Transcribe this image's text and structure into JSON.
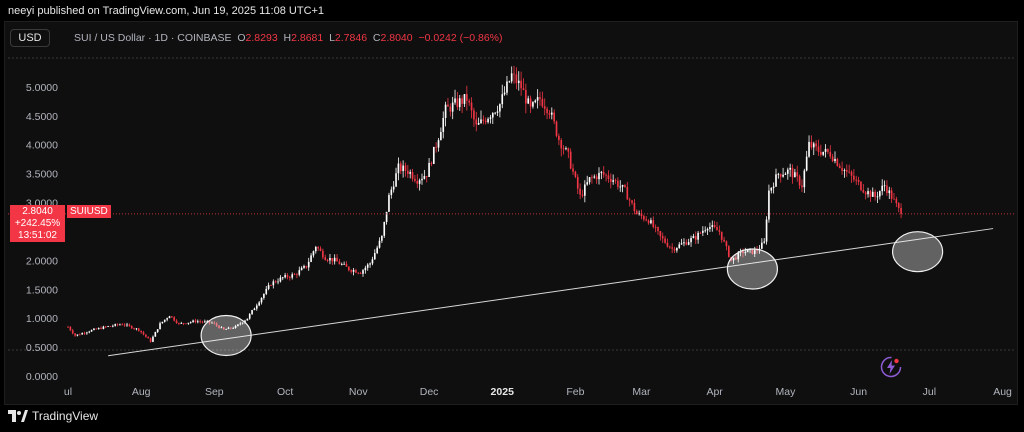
{
  "publisher": "neeyi published on TradingView.com, Jun 19, 2025 11:08 UTC+1",
  "currency": "USD",
  "legend": {
    "symbol": "SUI / US Dollar · 1D · COINBASE",
    "o_label": "O",
    "o": "2.8293",
    "h_label": "H",
    "h": "2.8681",
    "l_label": "L",
    "l": "2.7846",
    "c_label": "C",
    "c": "2.8040",
    "change": "−0.0242 (−0.86%)"
  },
  "price_tag": {
    "price": "2.8040",
    "pct": "+242.45%",
    "countdown": "13:51:02"
  },
  "symbol_tag": "SUIUSD",
  "footer": "TradingView",
  "colors": {
    "up": "#ffffff",
    "down": "#f23645",
    "background": "#0f0f0f",
    "trendline": "#d8d8d8"
  },
  "icons": {
    "bolt": "lightning-bolt-icon",
    "logo": "tradingview-logo-icon"
  },
  "chart_data": {
    "type": "candlestick",
    "title": "",
    "xlabel": "",
    "ylabel": "",
    "ylim": [
      0,
      5.5
    ],
    "xlim": [
      "2024-07-01",
      "2025-08-05"
    ],
    "y_ticks": [
      "0.0000",
      "0.5000",
      "1.0000",
      "1.5000",
      "2.0000",
      "2.5000",
      "3.0000",
      "3.5000",
      "4.0000",
      "4.5000",
      "5.0000"
    ],
    "y_tick_values": [
      0,
      0.5,
      1,
      1.5,
      2,
      2.5,
      3,
      3.5,
      4,
      4.5,
      5
    ],
    "x_ticks": [
      {
        "label": "ul",
        "date": "2024-07-01"
      },
      {
        "label": "Aug",
        "date": "2024-08-01"
      },
      {
        "label": "Sep",
        "date": "2024-09-01"
      },
      {
        "label": "Oct",
        "date": "2024-10-01"
      },
      {
        "label": "Nov",
        "date": "2024-11-01"
      },
      {
        "label": "Dec",
        "date": "2024-12-01"
      },
      {
        "label": "2025",
        "date": "2025-01-01"
      },
      {
        "label": "Feb",
        "date": "2025-02-01"
      },
      {
        "label": "Mar",
        "date": "2025-03-01"
      },
      {
        "label": "Apr",
        "date": "2025-04-01"
      },
      {
        "label": "May",
        "date": "2025-05-01"
      },
      {
        "label": "Jun",
        "date": "2025-06-01"
      },
      {
        "label": "Jul",
        "date": "2025-07-01"
      },
      {
        "label": "Aug",
        "date": "2025-08-01"
      }
    ],
    "price_path": [
      [
        "2024-07-01",
        0.85
      ],
      [
        "2024-07-04",
        0.7
      ],
      [
        "2024-07-10",
        0.78
      ],
      [
        "2024-07-17",
        0.85
      ],
      [
        "2024-07-24",
        0.9
      ],
      [
        "2024-07-31",
        0.8
      ],
      [
        "2024-08-05",
        0.6
      ],
      [
        "2024-08-09",
        0.9
      ],
      [
        "2024-08-13",
        1.05
      ],
      [
        "2024-08-17",
        0.9
      ],
      [
        "2024-08-24",
        0.95
      ],
      [
        "2024-08-31",
        0.92
      ],
      [
        "2024-09-05",
        0.8
      ],
      [
        "2024-09-10",
        0.85
      ],
      [
        "2024-09-15",
        1.0
      ],
      [
        "2024-09-20",
        1.3
      ],
      [
        "2024-09-25",
        1.6
      ],
      [
        "2024-09-30",
        1.7
      ],
      [
        "2024-10-05",
        1.75
      ],
      [
        "2024-10-10",
        1.9
      ],
      [
        "2024-10-14",
        2.25
      ],
      [
        "2024-10-18",
        2.05
      ],
      [
        "2024-10-22",
        2.0
      ],
      [
        "2024-10-28",
        1.85
      ],
      [
        "2024-11-02",
        1.8
      ],
      [
        "2024-11-06",
        1.95
      ],
      [
        "2024-11-11",
        2.4
      ],
      [
        "2024-11-14",
        3.1
      ],
      [
        "2024-11-18",
        3.6
      ],
      [
        "2024-11-22",
        3.55
      ],
      [
        "2024-11-26",
        3.4
      ],
      [
        "2024-11-30",
        3.5
      ],
      [
        "2024-12-04",
        4.0
      ],
      [
        "2024-12-08",
        4.6
      ],
      [
        "2024-12-12",
        4.7
      ],
      [
        "2024-12-17",
        4.8
      ],
      [
        "2024-12-21",
        4.3
      ],
      [
        "2024-12-26",
        4.5
      ],
      [
        "2024-12-31",
        4.7
      ],
      [
        "2025-01-05",
        5.2
      ],
      [
        "2025-01-09",
        5.0
      ],
      [
        "2025-01-13",
        4.6
      ],
      [
        "2025-01-17",
        4.8
      ],
      [
        "2025-01-21",
        4.6
      ],
      [
        "2025-01-25",
        4.1
      ],
      [
        "2025-01-29",
        3.8
      ],
      [
        "2025-02-03",
        3.1
      ],
      [
        "2025-02-07",
        3.4
      ],
      [
        "2025-02-12",
        3.5
      ],
      [
        "2025-02-17",
        3.4
      ],
      [
        "2025-02-22",
        3.2
      ],
      [
        "2025-02-27",
        2.8
      ],
      [
        "2025-03-04",
        2.7
      ],
      [
        "2025-03-09",
        2.4
      ],
      [
        "2025-03-14",
        2.2
      ],
      [
        "2025-03-19",
        2.3
      ],
      [
        "2025-03-24",
        2.4
      ],
      [
        "2025-03-29",
        2.6
      ],
      [
        "2025-04-03",
        2.5
      ],
      [
        "2025-04-08",
        2.0
      ],
      [
        "2025-04-13",
        2.15
      ],
      [
        "2025-04-18",
        2.15
      ],
      [
        "2025-04-22",
        2.3
      ],
      [
        "2025-04-24",
        3.2
      ],
      [
        "2025-04-28",
        3.5
      ],
      [
        "2025-05-03",
        3.55
      ],
      [
        "2025-05-08",
        3.3
      ],
      [
        "2025-05-11",
        4.0
      ],
      [
        "2025-05-15",
        3.9
      ],
      [
        "2025-05-20",
        3.85
      ],
      [
        "2025-05-25",
        3.6
      ],
      [
        "2025-05-30",
        3.4
      ],
      [
        "2025-06-04",
        3.2
      ],
      [
        "2025-06-08",
        3.1
      ],
      [
        "2025-06-12",
        3.3
      ],
      [
        "2025-06-15",
        3.1
      ],
      [
        "2025-06-19",
        2.8
      ]
    ],
    "trendline": [
      [
        "2024-07-18",
        0.35
      ],
      [
        "2025-07-28",
        2.55
      ]
    ],
    "current_price": 2.804,
    "annotations": [
      {
        "type": "ellipse",
        "date": "2024-09-06",
        "price": 0.7
      },
      {
        "type": "ellipse",
        "date": "2025-04-17",
        "price": 1.85
      },
      {
        "type": "ellipse",
        "date": "2025-06-26",
        "price": 2.15
      }
    ]
  }
}
